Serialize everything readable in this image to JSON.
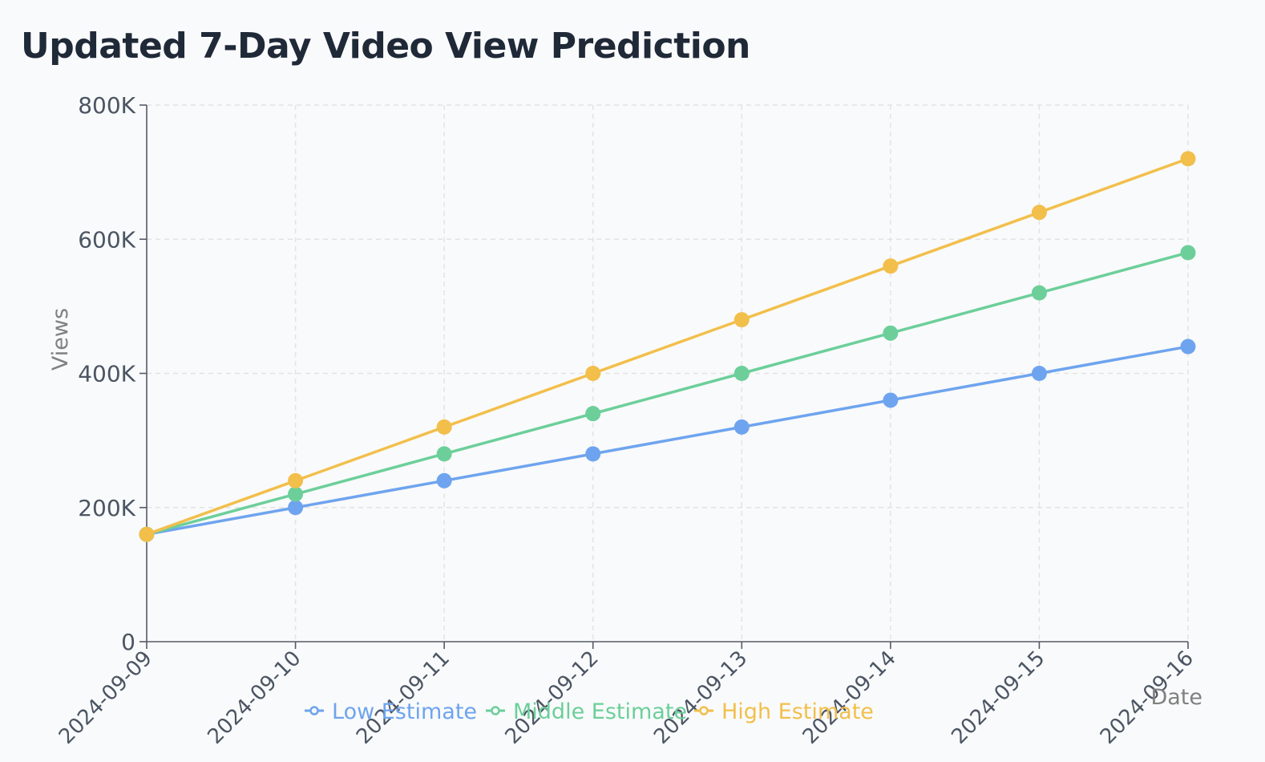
{
  "chart_data": {
    "type": "line",
    "title": "Updated 7-Day Video View Prediction",
    "xlabel": "Date",
    "ylabel": "Views",
    "x": [
      "2024-09-09",
      "2024-09-10",
      "2024-09-11",
      "2024-09-12",
      "2024-09-13",
      "2024-09-14",
      "2024-09-15",
      "2024-09-16"
    ],
    "ylim": [
      0,
      800000
    ],
    "y_ticks": [
      0,
      200000,
      400000,
      600000,
      800000
    ],
    "y_tick_labels": [
      "0",
      "200K",
      "400K",
      "600K",
      "800K"
    ],
    "grid": true,
    "legend_position": "bottom",
    "series": [
      {
        "name": "Low Estimate",
        "color": "#6ea4ef",
        "values": [
          160000,
          200000,
          240000,
          280000,
          320000,
          360000,
          400000,
          440000
        ]
      },
      {
        "name": "Middle Estimate",
        "color": "#6ccf9a",
        "values": [
          160000,
          220000,
          280000,
          340000,
          400000,
          460000,
          520000,
          580000
        ]
      },
      {
        "name": "High Estimate",
        "color": "#f2bf4b",
        "values": [
          160000,
          240000,
          320000,
          400000,
          480000,
          560000,
          640000,
          720000
        ]
      }
    ]
  }
}
